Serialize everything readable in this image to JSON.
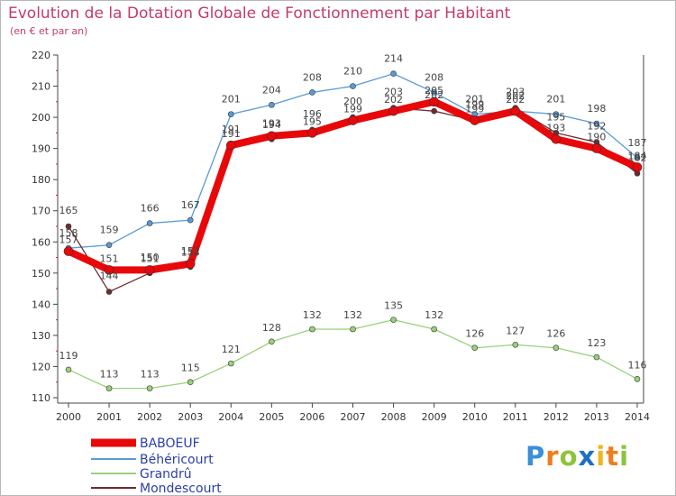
{
  "title": "Evolution de la Dotation Globale de Fonctionnement par Habitant",
  "subtitle": "(en € et par an)",
  "brand": "Proxiti",
  "chart_data": {
    "type": "line",
    "title": "Evolution de la Dotation Globale de Fonctionnement par Habitant",
    "subtitle": "(en € et par an)",
    "x": [
      "2000",
      "2001",
      "2002",
      "2003",
      "2004",
      "2005",
      "2006",
      "2007",
      "2008",
      "2009",
      "2010",
      "2011",
      "2012",
      "2013",
      "2014"
    ],
    "ylim": [
      110,
      220
    ],
    "yticks": [
      110,
      120,
      130,
      140,
      150,
      160,
      170,
      180,
      190,
      200,
      210,
      220
    ],
    "grid": false,
    "legend": "bottom-left",
    "series": [
      {
        "name": "BABOEUF",
        "color": "#e8080a",
        "values": [
          157,
          151,
          151,
          153,
          191,
          194,
          195,
          199,
          202,
          205,
          199,
          202,
          193,
          190,
          184
        ]
      },
      {
        "name": "Béhéricourt",
        "color": "#5a9bd4",
        "values": [
          158,
          159,
          166,
          167,
          201,
          204,
          208,
          210,
          214,
          208,
          201,
          202,
          201,
          198,
          187
        ]
      },
      {
        "name": "Grandrû",
        "color": "#99d17a",
        "values": [
          119,
          113,
          113,
          115,
          121,
          128,
          132,
          132,
          135,
          132,
          126,
          127,
          126,
          123,
          116
        ]
      },
      {
        "name": "Mondescourt",
        "color": "#6e2b33",
        "values": [
          165,
          144,
          150,
          152,
          191,
          193,
          196,
          200,
          203,
          202,
          199,
          203,
          195,
          192,
          182
        ]
      }
    ]
  }
}
